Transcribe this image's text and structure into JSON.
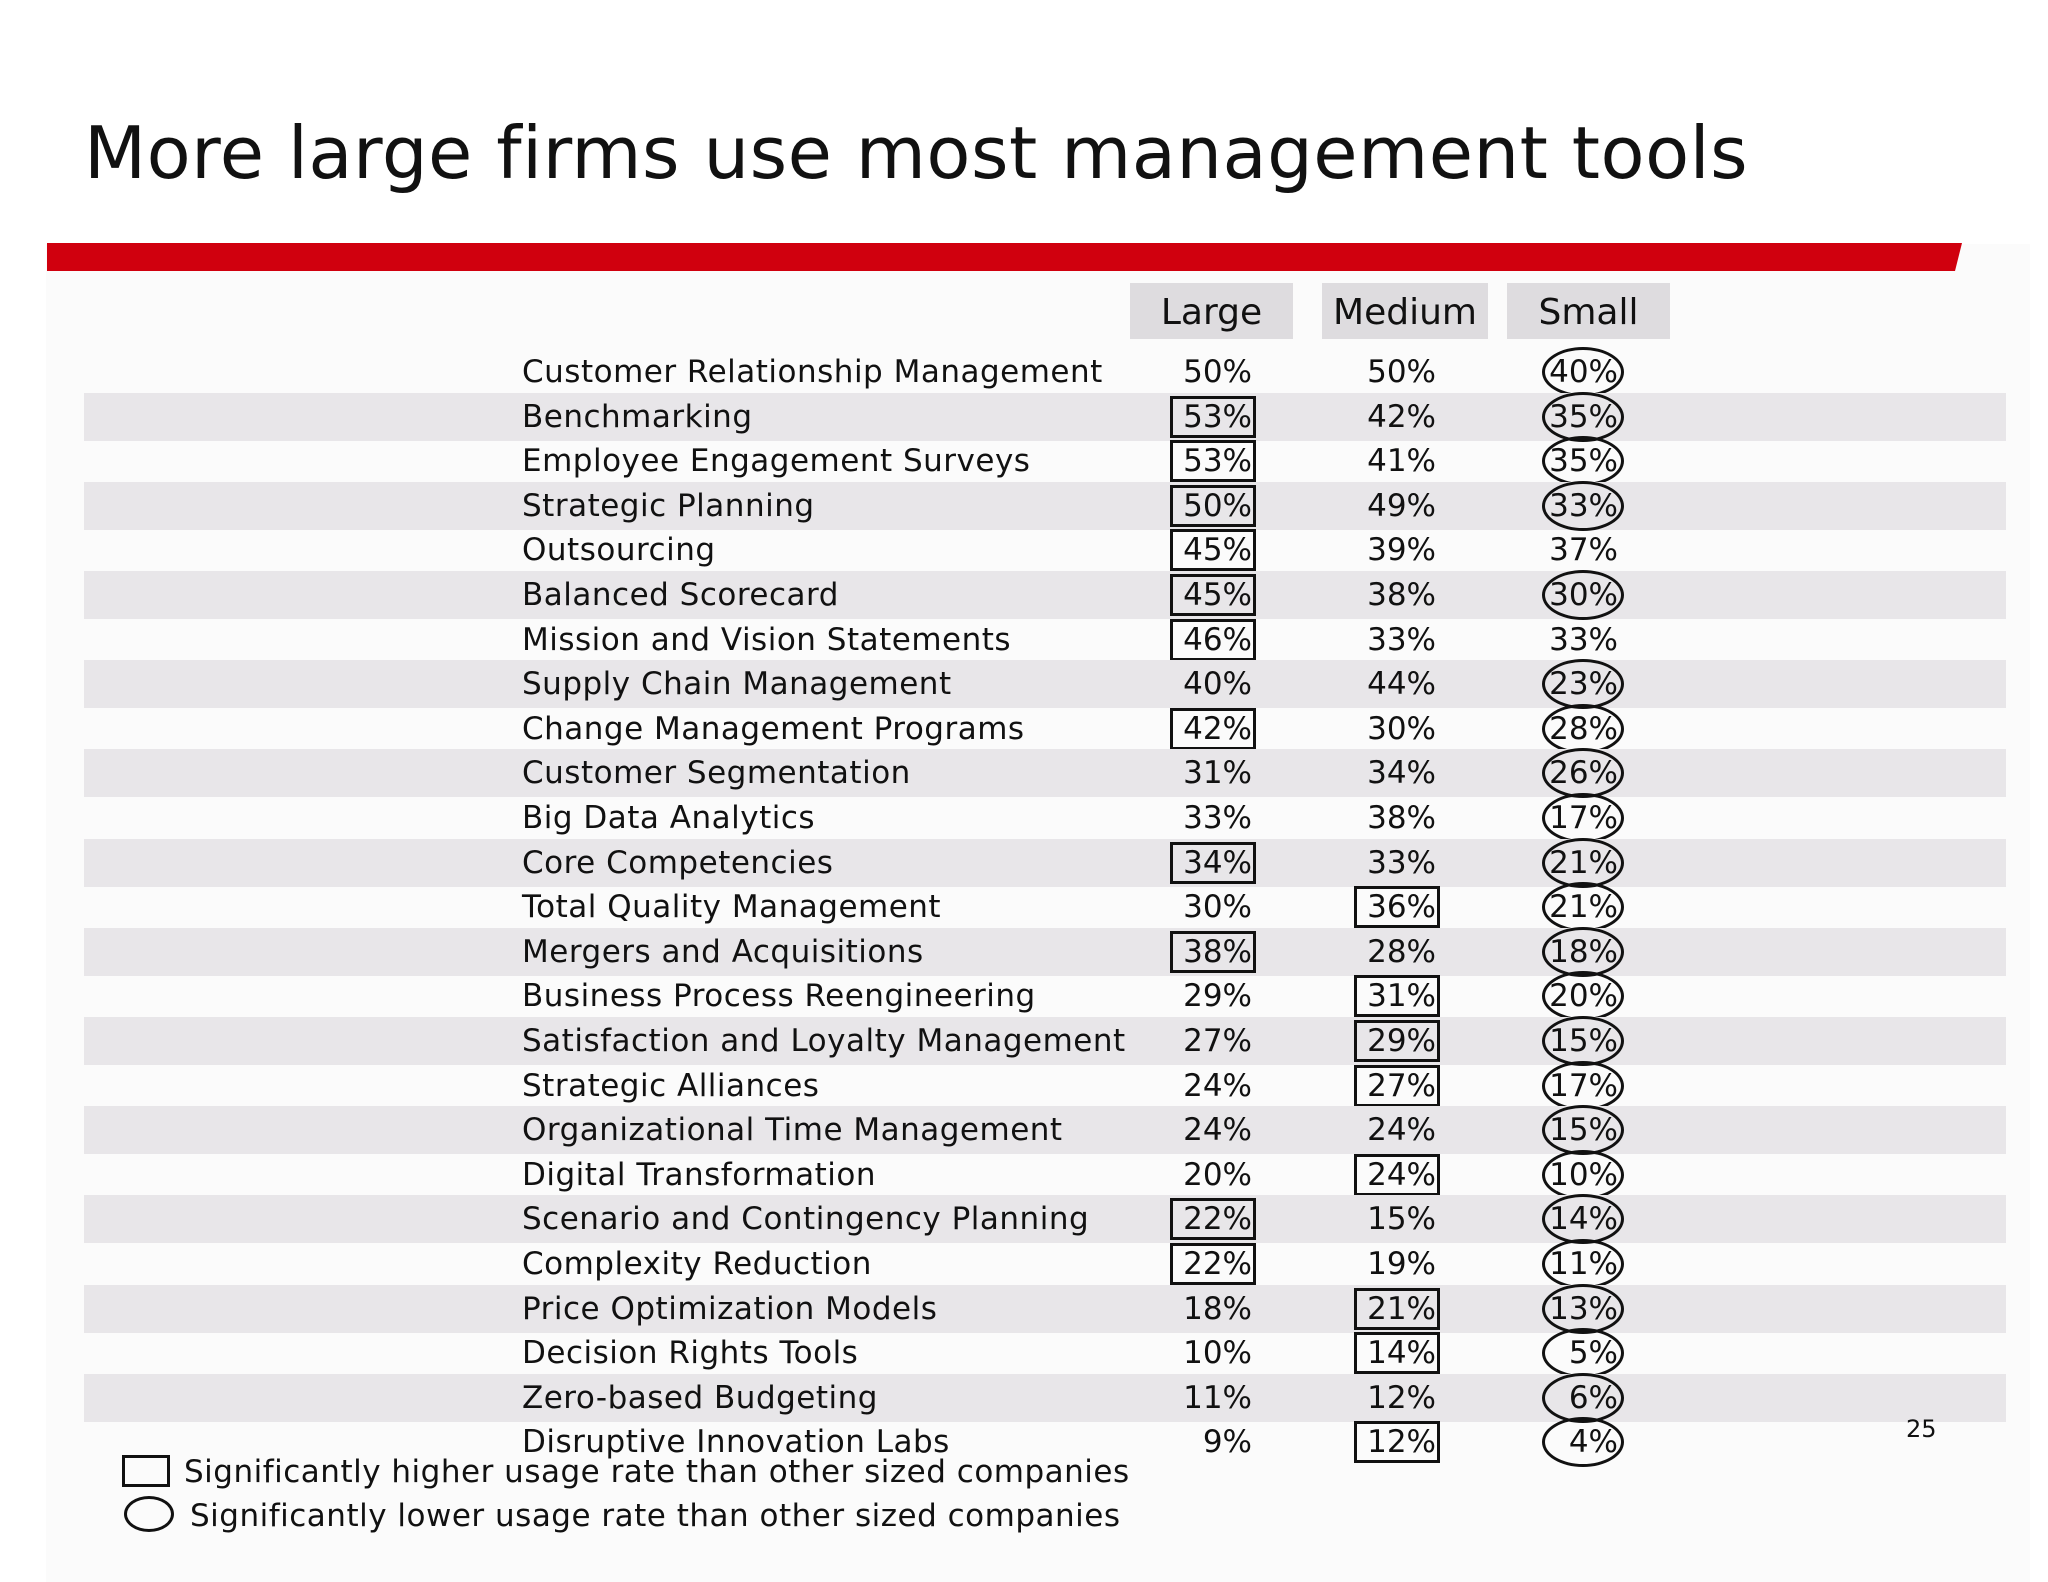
{
  "slide": {
    "title": "More large firms use most management tools",
    "page_number": "25",
    "accent_color": "#d0000e",
    "band_color": "#e8e6e9",
    "header_color": "#dedcdf"
  },
  "legend": {
    "higher": "Significantly higher usage rate than other sized companies",
    "lower": "Significantly lower usage rate than other sized companies",
    "higher_icon": "rectangle-outline-icon",
    "lower_icon": "ellipse-outline-icon"
  },
  "chart_data": {
    "type": "table",
    "title": "More large firms use most management tools",
    "columns": [
      "Large",
      "Medium",
      "Small"
    ],
    "unit": "%",
    "rows": [
      {
        "tool": "Customer Relationship Management",
        "large": "50%",
        "medium": "50%",
        "small": "40%",
        "large_mark": "none",
        "medium_mark": "none",
        "small_mark": "lower"
      },
      {
        "tool": "Benchmarking",
        "large": "53%",
        "medium": "42%",
        "small": "35%",
        "large_mark": "higher",
        "medium_mark": "none",
        "small_mark": "lower"
      },
      {
        "tool": "Employee Engagement Surveys",
        "large": "53%",
        "medium": "41%",
        "small": "35%",
        "large_mark": "higher",
        "medium_mark": "none",
        "small_mark": "lower"
      },
      {
        "tool": "Strategic Planning",
        "large": "50%",
        "medium": "49%",
        "small": "33%",
        "large_mark": "higher",
        "medium_mark": "none",
        "small_mark": "lower"
      },
      {
        "tool": "Outsourcing",
        "large": "45%",
        "medium": "39%",
        "small": "37%",
        "large_mark": "higher",
        "medium_mark": "none",
        "small_mark": "none"
      },
      {
        "tool": "Balanced Scorecard",
        "large": "45%",
        "medium": "38%",
        "small": "30%",
        "large_mark": "higher",
        "medium_mark": "none",
        "small_mark": "lower"
      },
      {
        "tool": "Mission and Vision Statements",
        "large": "46%",
        "medium": "33%",
        "small": "33%",
        "large_mark": "higher",
        "medium_mark": "none",
        "small_mark": "none"
      },
      {
        "tool": "Supply Chain Management",
        "large": "40%",
        "medium": "44%",
        "small": "23%",
        "large_mark": "none",
        "medium_mark": "none",
        "small_mark": "lower"
      },
      {
        "tool": "Change Management Programs",
        "large": "42%",
        "medium": "30%",
        "small": "28%",
        "large_mark": "higher",
        "medium_mark": "none",
        "small_mark": "lower"
      },
      {
        "tool": "Customer Segmentation",
        "large": "31%",
        "medium": "34%",
        "small": "26%",
        "large_mark": "none",
        "medium_mark": "none",
        "small_mark": "lower"
      },
      {
        "tool": "Big Data Analytics",
        "large": "33%",
        "medium": "38%",
        "small": "17%",
        "large_mark": "none",
        "medium_mark": "none",
        "small_mark": "lower"
      },
      {
        "tool": "Core Competencies",
        "large": "34%",
        "medium": "33%",
        "small": "21%",
        "large_mark": "higher",
        "medium_mark": "none",
        "small_mark": "lower"
      },
      {
        "tool": "Total Quality Management",
        "large": "30%",
        "medium": "36%",
        "small": "21%",
        "large_mark": "none",
        "medium_mark": "higher",
        "small_mark": "lower"
      },
      {
        "tool": "Mergers and Acquisitions",
        "large": "38%",
        "medium": "28%",
        "small": "18%",
        "large_mark": "higher",
        "medium_mark": "none",
        "small_mark": "lower"
      },
      {
        "tool": "Business Process Reengineering",
        "large": "29%",
        "medium": "31%",
        "small": "20%",
        "large_mark": "none",
        "medium_mark": "higher",
        "small_mark": "lower"
      },
      {
        "tool": "Satisfaction and Loyalty Management",
        "large": "27%",
        "medium": "29%",
        "small": "15%",
        "large_mark": "none",
        "medium_mark": "higher",
        "small_mark": "lower"
      },
      {
        "tool": "Strategic Alliances",
        "large": "24%",
        "medium": "27%",
        "small": "17%",
        "large_mark": "none",
        "medium_mark": "higher",
        "small_mark": "lower"
      },
      {
        "tool": "Organizational Time Management",
        "large": "24%",
        "medium": "24%",
        "small": "15%",
        "large_mark": "none",
        "medium_mark": "none",
        "small_mark": "lower"
      },
      {
        "tool": "Digital Transformation",
        "large": "20%",
        "medium": "24%",
        "small": "10%",
        "large_mark": "none",
        "medium_mark": "higher",
        "small_mark": "lower"
      },
      {
        "tool": "Scenario and Contingency Planning",
        "large": "22%",
        "medium": "15%",
        "small": "14%",
        "large_mark": "higher",
        "medium_mark": "none",
        "small_mark": "lower"
      },
      {
        "tool": "Complexity Reduction",
        "large": "22%",
        "medium": "19%",
        "small": "11%",
        "large_mark": "higher",
        "medium_mark": "none",
        "small_mark": "lower"
      },
      {
        "tool": "Price Optimization Models",
        "large": "18%",
        "medium": "21%",
        "small": "13%",
        "large_mark": "none",
        "medium_mark": "higher",
        "small_mark": "lower"
      },
      {
        "tool": "Decision Rights Tools",
        "large": "10%",
        "medium": "14%",
        "small": "5%",
        "large_mark": "none",
        "medium_mark": "higher",
        "small_mark": "lower"
      },
      {
        "tool": "Zero-based Budgeting",
        "large": "11%",
        "medium": "12%",
        "small": "6%",
        "large_mark": "none",
        "medium_mark": "none",
        "small_mark": "lower"
      },
      {
        "tool": "Disruptive Innovation Labs",
        "large": "9%",
        "medium": "12%",
        "small": "4%",
        "large_mark": "none",
        "medium_mark": "higher",
        "small_mark": "lower"
      }
    ]
  }
}
